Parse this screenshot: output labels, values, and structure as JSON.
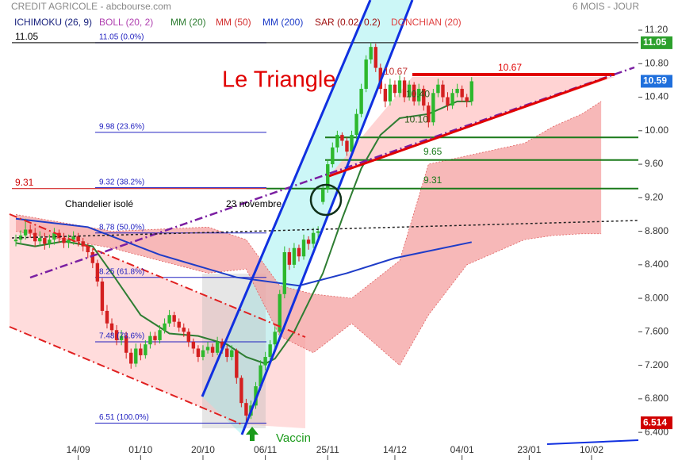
{
  "chart_data": {
    "type": "candlestick",
    "title": "CREDIT AGRICOLE - abcbourse.com",
    "subtitle": "6 MOIS - JOUR",
    "legend": [
      {
        "name": "ICHIMOKU (26, 9)",
        "color": "#1a237e"
      },
      {
        "name": "BOLL (20, 2)",
        "color": "#b040b0"
      },
      {
        "name": "MM (20)",
        "color": "#2e7d32"
      },
      {
        "name": "MM (50)",
        "color": "#d32f2f"
      },
      {
        "name": "MM (200)",
        "color": "#1e3cc8"
      },
      {
        "name": "SAR (0.02, 0.2)",
        "color": "#a01010"
      },
      {
        "name": "DONCHIAN (20)",
        "color": "#e04040"
      }
    ],
    "up_color": "#2db82d",
    "down_color": "#d42020",
    "candles": [
      [
        8.68,
        8.76,
        8.62,
        8.7
      ],
      [
        8.7,
        8.81,
        8.64,
        8.75
      ],
      [
        8.75,
        8.95,
        8.7,
        8.82
      ],
      [
        8.82,
        8.88,
        8.72,
        8.78
      ],
      [
        8.78,
        8.84,
        8.62,
        8.68
      ],
      [
        8.68,
        8.8,
        8.62,
        8.72
      ],
      [
        8.72,
        8.78,
        8.58,
        8.65
      ],
      [
        8.65,
        8.76,
        8.6,
        8.7
      ],
      [
        8.7,
        8.84,
        8.64,
        8.78
      ],
      [
        8.78,
        8.82,
        8.66,
        8.72
      ],
      [
        8.72,
        8.78,
        8.6,
        8.66
      ],
      [
        8.66,
        8.76,
        8.6,
        8.7
      ],
      [
        8.7,
        8.8,
        8.64,
        8.74
      ],
      [
        8.74,
        8.78,
        8.62,
        8.68
      ],
      [
        8.68,
        8.72,
        8.56,
        8.62
      ],
      [
        8.62,
        8.66,
        8.48,
        8.55
      ],
      [
        8.55,
        8.6,
        8.36,
        8.42
      ],
      [
        8.42,
        8.46,
        8.14,
        8.2
      ],
      [
        8.2,
        8.24,
        7.8,
        7.85
      ],
      [
        7.85,
        7.92,
        7.64,
        7.7
      ],
      [
        7.7,
        7.76,
        7.56,
        7.62
      ],
      [
        7.62,
        7.68,
        7.44,
        7.5
      ],
      [
        7.5,
        7.62,
        7.44,
        7.55
      ],
      [
        7.55,
        7.6,
        7.28,
        7.35
      ],
      [
        7.35,
        7.4,
        7.16,
        7.22
      ],
      [
        7.22,
        7.46,
        7.18,
        7.4
      ],
      [
        7.4,
        7.46,
        7.26,
        7.32
      ],
      [
        7.32,
        7.5,
        7.28,
        7.45
      ],
      [
        7.45,
        7.6,
        7.4,
        7.55
      ],
      [
        7.55,
        7.6,
        7.44,
        7.5
      ],
      [
        7.5,
        7.68,
        7.46,
        7.62
      ],
      [
        7.62,
        7.76,
        7.58,
        7.7
      ],
      [
        7.7,
        7.86,
        7.66,
        7.8
      ],
      [
        7.8,
        7.84,
        7.66,
        7.72
      ],
      [
        7.72,
        7.76,
        7.6,
        7.65
      ],
      [
        7.65,
        7.7,
        7.54,
        7.6
      ],
      [
        7.6,
        7.64,
        7.42,
        7.48
      ],
      [
        7.48,
        7.52,
        7.34,
        7.4
      ],
      [
        7.4,
        7.44,
        7.24,
        7.3
      ],
      [
        7.3,
        7.44,
        7.26,
        7.38
      ],
      [
        7.38,
        7.48,
        7.34,
        7.42
      ],
      [
        7.42,
        7.46,
        7.3,
        7.35
      ],
      [
        7.35,
        7.54,
        7.32,
        7.48
      ],
      [
        7.48,
        7.52,
        7.34,
        7.4
      ],
      [
        7.4,
        7.44,
        7.24,
        7.3
      ],
      [
        7.3,
        7.44,
        7.26,
        7.38
      ],
      [
        7.38,
        7.4,
        6.98,
        7.05
      ],
      [
        7.05,
        7.08,
        6.7,
        6.75
      ],
      [
        6.75,
        6.8,
        6.51,
        6.6
      ],
      [
        6.6,
        6.78,
        6.56,
        6.72
      ],
      [
        6.72,
        7.0,
        6.68,
        6.95
      ],
      [
        6.95,
        7.26,
        6.9,
        7.2
      ],
      [
        7.2,
        7.36,
        7.14,
        7.3
      ],
      [
        7.3,
        7.5,
        7.26,
        7.45
      ],
      [
        7.45,
        7.66,
        7.4,
        7.6
      ],
      [
        7.6,
        8.1,
        7.58,
        8.05
      ],
      [
        8.05,
        8.62,
        8.0,
        8.55
      ],
      [
        8.55,
        8.6,
        8.34,
        8.4
      ],
      [
        8.4,
        8.66,
        8.36,
        8.6
      ],
      [
        8.6,
        8.64,
        8.44,
        8.5
      ],
      [
        8.5,
        8.76,
        8.46,
        8.7
      ],
      [
        8.7,
        8.74,
        8.58,
        8.65
      ],
      [
        8.65,
        8.84,
        8.6,
        8.78
      ],
      [
        8.78,
        8.86,
        8.72,
        8.8
      ],
      [
        9.15,
        9.36,
        9.12,
        9.3
      ],
      [
        9.3,
        9.66,
        9.26,
        9.6
      ],
      [
        9.6,
        9.86,
        9.56,
        9.8
      ],
      [
        9.8,
        10.0,
        9.74,
        9.95
      ],
      [
        9.95,
        9.98,
        9.82,
        9.88
      ],
      [
        9.88,
        9.92,
        9.7,
        9.75
      ],
      [
        9.75,
        10.0,
        9.7,
        9.95
      ],
      [
        9.95,
        10.26,
        9.9,
        10.2
      ],
      [
        10.2,
        10.56,
        10.16,
        10.5
      ],
      [
        10.5,
        10.9,
        10.46,
        10.85
      ],
      [
        10.85,
        11.05,
        10.8,
        11.0
      ],
      [
        11.0,
        11.04,
        10.7,
        10.75
      ],
      [
        10.75,
        10.8,
        10.44,
        10.5
      ],
      [
        10.5,
        10.56,
        10.28,
        10.35
      ],
      [
        10.35,
        10.62,
        10.3,
        10.55
      ],
      [
        10.55,
        10.6,
        10.4,
        10.45
      ],
      [
        10.45,
        10.66,
        10.4,
        10.6
      ],
      [
        10.6,
        10.64,
        10.34,
        10.4
      ],
      [
        10.4,
        10.6,
        10.36,
        10.55
      ],
      [
        10.55,
        10.58,
        10.3,
        10.35
      ],
      [
        10.35,
        10.56,
        10.3,
        10.5
      ],
      [
        10.5,
        10.54,
        10.24,
        10.3
      ],
      [
        10.3,
        10.34,
        10.04,
        10.1
      ],
      [
        10.1,
        10.5,
        10.06,
        10.45
      ],
      [
        10.45,
        10.62,
        10.4,
        10.55
      ],
      [
        10.55,
        10.6,
        10.34,
        10.4
      ],
      [
        10.4,
        10.46,
        10.24,
        10.3
      ],
      [
        10.3,
        10.5,
        10.26,
        10.45
      ],
      [
        10.45,
        10.56,
        10.4,
        10.5
      ],
      [
        10.5,
        10.54,
        10.34,
        10.4
      ],
      [
        10.4,
        10.44,
        10.28,
        10.35
      ],
      [
        10.35,
        10.64,
        10.3,
        10.59
      ]
    ],
    "lines": [
      {
        "color": "#2e7d32",
        "x": [
          0,
          4,
          10,
          16,
          20,
          26,
          32,
          38,
          44,
          48,
          52,
          54,
          58,
          64,
          68,
          72,
          76,
          80,
          86,
          92,
          95
        ],
        "values": [
          8.66,
          8.62,
          8.68,
          8.62,
          8.3,
          7.8,
          7.58,
          7.55,
          7.45,
          7.3,
          7.22,
          7.28,
          7.6,
          8.3,
          8.95,
          9.55,
          9.95,
          10.15,
          10.2,
          10.35,
          10.35
        ]
      },
      {
        "color": "#1e3cc8",
        "x": [
          0,
          15,
          30,
          46,
          59,
          69,
          79,
          95
        ],
        "values": [
          8.95,
          8.85,
          8.52,
          8.25,
          8.15,
          8.3,
          8.48,
          8.67
        ]
      }
    ],
    "cloud": {
      "color": "#f4a0a0",
      "x": [
        0,
        20,
        40,
        48,
        55,
        62,
        70,
        80,
        86,
        94,
        106,
        112,
        118,
        122
      ],
      "upper": [
        9.0,
        8.8,
        8.85,
        8.7,
        8.15,
        8.05,
        8.0,
        8.45,
        9.6,
        9.7,
        9.85,
        10.05,
        10.2,
        10.35
      ],
      "lower": [
        8.8,
        8.6,
        8.3,
        8.35,
        7.55,
        7.35,
        7.7,
        7.2,
        7.8,
        8.4,
        8.7,
        8.75,
        8.77,
        8.77
      ]
    },
    "fibonacci": [
      {
        "value": 11.05,
        "label": "11.05  (0.0%)"
      },
      {
        "value": 9.98,
        "label": "9.98  (23.6%)"
      },
      {
        "value": 9.32,
        "label": "9.32  (38.2%)"
      },
      {
        "value": 8.78,
        "label": "8.78  (50.0%)"
      },
      {
        "value": 8.25,
        "label": "8.25  (61.8%)"
      },
      {
        "value": 7.48,
        "label": "7.48  (78.6%)"
      },
      {
        "value": 6.51,
        "label": "6.51  (100.0%)"
      }
    ],
    "left_labels": [
      {
        "value": 11.05,
        "label": "11.05",
        "color": "#000000"
      },
      {
        "value": 9.31,
        "label": "9.31",
        "color": "#cc0000"
      }
    ],
    "levels": [
      {
        "value": 9.92,
        "color": "#1a7a1a"
      },
      {
        "value": 9.65,
        "label": "9.65",
        "color": "#1a7a1a"
      },
      {
        "value": 9.31,
        "label": "9.31",
        "color": "#1a7a1a"
      }
    ],
    "resistance": {
      "value": 10.67,
      "label": "10.67",
      "color": "#e00000"
    },
    "donchian_labels": [
      {
        "value": 10.67,
        "label": "10.67"
      },
      {
        "value": 10.4,
        "label": "10.40"
      },
      {
        "value": 10.1,
        "label": "10.10"
      }
    ],
    "price_labels": [
      {
        "value": 11.05,
        "label": "11.05",
        "color": "#2ca02c"
      },
      {
        "value": 10.59,
        "label": "10.59",
        "color": "#1f6fdc"
      },
      {
        "value": 6.514,
        "label": "6.514",
        "color": "#d00000"
      }
    ],
    "annotations": {
      "triangle": "Le Triangle",
      "isolated": "Chandelier isolé",
      "date": "23 novembre",
      "vaccine": "Vaccin"
    },
    "xlim": [
      -3.31,
      129.75
    ],
    "xticks": [
      {
        "value": 13,
        "label": "14/09"
      },
      {
        "value": 26,
        "label": "01/10"
      },
      {
        "value": 39,
        "label": "20/10"
      },
      {
        "value": 52,
        "label": "06/11"
      },
      {
        "value": 65,
        "label": "25/11"
      },
      {
        "value": 79,
        "label": "14/12"
      },
      {
        "value": 93,
        "label": "04/01"
      },
      {
        "value": 107,
        "label": "23/01"
      },
      {
        "value": 120,
        "label": "10/02"
      }
    ],
    "ylim": [
      6.07,
      11.56
    ],
    "yticks": [
      {
        "value": 11.2,
        "label": "11.20"
      },
      {
        "value": 10.8,
        "label": "10.80"
      },
      {
        "value": 10.4,
        "label": "10.40"
      },
      {
        "value": 10.0,
        "label": "10.00"
      },
      {
        "value": 9.6,
        "label": "9.60"
      },
      {
        "value": 9.2,
        "label": "9.20"
      },
      {
        "value": 8.8,
        "label": "8.800"
      },
      {
        "value": 8.4,
        "label": "8.400"
      },
      {
        "value": 8.0,
        "label": "8.000"
      },
      {
        "value": 7.6,
        "label": "7.600"
      },
      {
        "value": 7.2,
        "label": "7.200"
      },
      {
        "value": 6.8,
        "label": "6.800"
      },
      {
        "value": 6.4,
        "label": "6.400"
      }
    ]
  }
}
